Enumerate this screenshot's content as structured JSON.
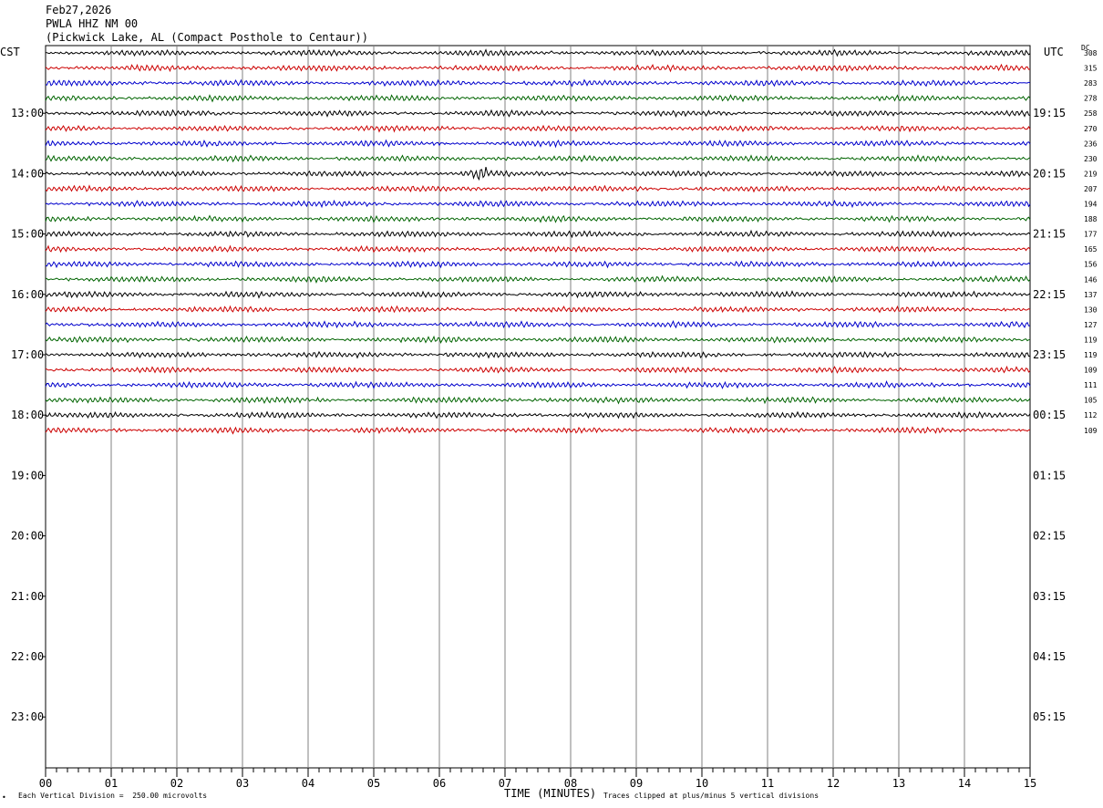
{
  "header": {
    "date": "Feb27,2026",
    "station": "PWLA HHZ NM 00",
    "location": "(Pickwick Lake, AL (Compact Posthole to Centaur))"
  },
  "left_axis_label": "CST",
  "right_axis_label": "UTC",
  "dc_label": "DC",
  "footer": {
    "scale_note": "Each Vertical Division =  250.00 microvolts",
    "x_title": "TIME (MINUTES)",
    "clip_note": "Traces clipped at plus/minus 5 vertical divisions",
    "corner_mark": "•"
  },
  "colors": {
    "trace_cycle": [
      "#000000",
      "#cc0000",
      "#0000cc",
      "#006400"
    ],
    "grid": "#808080"
  },
  "chart_data": {
    "type": "line",
    "title": "PWLA HHZ NM 00",
    "xlabel": "TIME (MINUTES)",
    "xlim": [
      0,
      15
    ],
    "x_ticks": [
      "00",
      "01",
      "02",
      "03",
      "04",
      "05",
      "06",
      "07",
      "08",
      "09",
      "10",
      "11",
      "12",
      "13",
      "14",
      "15"
    ],
    "rows_per_hour": 4,
    "row_minutes": 15,
    "first_hour_row_index": 4,
    "cst_hour_labels": [
      "13:00",
      "14:00",
      "15:00",
      "16:00",
      "17:00",
      "18:00",
      "19:00",
      "20:00",
      "21:00",
      "22:00",
      "23:00"
    ],
    "utc_hour_labels": [
      "19:15",
      "20:15",
      "21:15",
      "22:15",
      "23:15",
      "00:15",
      "01:15",
      "02:15",
      "03:15",
      "04:15",
      "05:15"
    ],
    "total_rows": 48,
    "trace_count": 26,
    "dc_offsets": [
      308,
      315,
      283,
      278,
      258,
      270,
      236,
      230,
      219,
      207,
      194,
      188,
      177,
      165,
      156,
      146,
      137,
      130,
      127,
      119,
      119,
      109,
      111,
      105,
      112,
      109
    ],
    "event_marks": [
      {
        "row": 8,
        "minute": 6.6
      }
    ]
  }
}
